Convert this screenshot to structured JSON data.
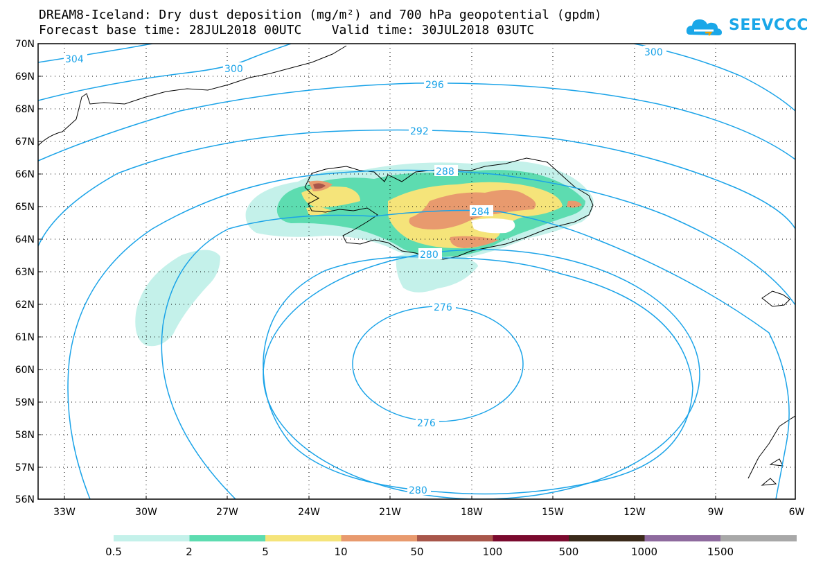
{
  "title": {
    "line1": "DREAM8-Iceland: Dry dust deposition (mg/m²) and 700 hPa geopotential (gpdm)",
    "line2": "Forecast base time: 28JUL2018 00UTC    Valid time: 30JUL2018 03UTC"
  },
  "logo": {
    "text": "SEEVCCC",
    "color": "#1aa7e8"
  },
  "axes": {
    "lat_labels": [
      "70N",
      "69N",
      "68N",
      "67N",
      "66N",
      "65N",
      "64N",
      "63N",
      "62N",
      "61N",
      "60N",
      "59N",
      "58N",
      "57N",
      "56N"
    ],
    "lon_labels": [
      "33W",
      "30W",
      "27W",
      "24W",
      "21W",
      "18W",
      "15W",
      "12W",
      "9W",
      "6W"
    ]
  },
  "contours": {
    "color": "#1aa3e8",
    "labels": [
      "304",
      "300",
      "300",
      "296",
      "292",
      "288",
      "284",
      "280",
      "276",
      "276",
      "280"
    ]
  },
  "colorbar": {
    "labels": [
      "0.5",
      "2",
      "5",
      "10",
      "50",
      "100",
      "500",
      "1000",
      "1500"
    ],
    "colors": [
      "#c4f1ea",
      "#5ddcb0",
      "#f5e47a",
      "#e89a6e",
      "#a8564a",
      "#7a0a2e",
      "#3a2a1a",
      "#8e6a9e",
      "#a8a8a8"
    ]
  }
}
